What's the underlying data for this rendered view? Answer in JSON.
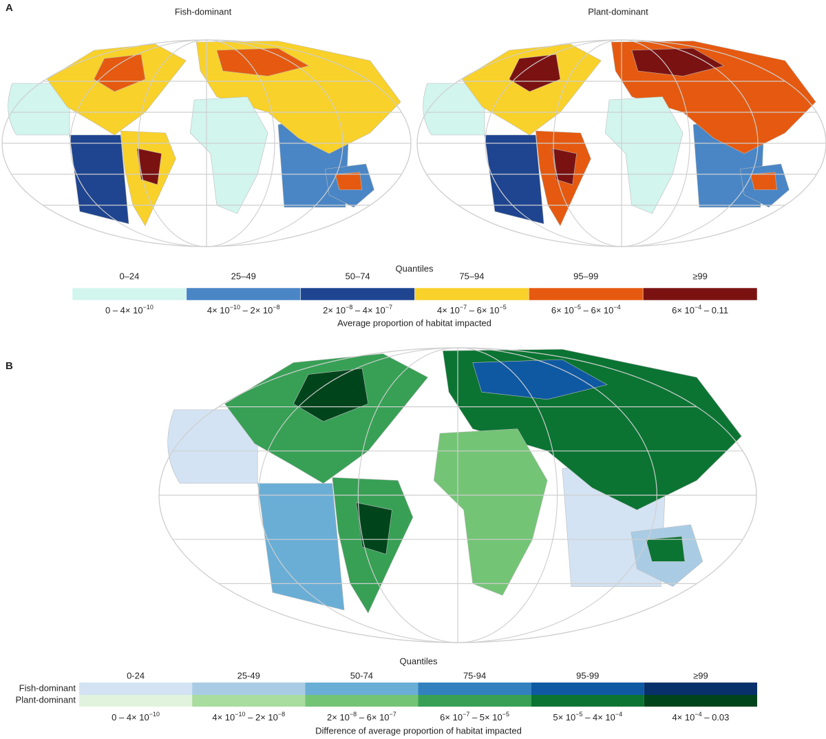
{
  "panel_a": {
    "label": "A",
    "titles": [
      "Fish-dominant",
      "Plant-dominant"
    ],
    "legend": {
      "title": "Quantiles",
      "quantiles": [
        "0–24",
        "25–49",
        "50–74",
        "75–94",
        "95–99",
        "≥99"
      ],
      "colors": [
        "#d2f5ee",
        "#4a86c5",
        "#1f4590",
        "#f8d12a",
        "#e55a10",
        "#7b1212"
      ],
      "ranges": [
        [
          "0 – 4× 10",
          "−10"
        ],
        [
          "4× 10",
          "−10",
          " – 2× 10",
          "−8"
        ],
        [
          "2× 10",
          "−8",
          " – 4× 10",
          "−7"
        ],
        [
          "4× 10",
          "−7",
          " – 6× 10",
          "−5"
        ],
        [
          "6× 10",
          "−5",
          " – 6× 10",
          "−4"
        ],
        [
          "6× 10",
          "−4",
          " – 0.11"
        ]
      ],
      "caption": "Average proportion of habitat impacted"
    }
  },
  "panel_b": {
    "label": "B",
    "legend": {
      "title": "Quantiles",
      "quantiles": [
        "0-24",
        "25-49",
        "50-74",
        "75-94",
        "95-99",
        "≥99"
      ],
      "rows": [
        "Fish-dominant",
        "Plant-dominant"
      ],
      "fish_colors": [
        "#d3e3f3",
        "#a9cce4",
        "#6aaed6",
        "#3280bd",
        "#0f59a3",
        "#08306b"
      ],
      "plant_colors": [
        "#e2f3dd",
        "#a9dc9f",
        "#74c476",
        "#37a055",
        "#0b7433",
        "#00441b"
      ],
      "ranges": [
        [
          "0 – 4× 10",
          "−10"
        ],
        [
          "4× 10",
          "−10",
          " – 2× 10",
          "−8"
        ],
        [
          "2× 10",
          "−8",
          " – 6× 10",
          "−7"
        ],
        [
          "6× 10",
          "−7",
          " – 5× 10",
          "−5"
        ],
        [
          "5× 10",
          "−5",
          " – 4× 10",
          "−4"
        ],
        [
          "4× 10",
          "−4",
          " – 0.03"
        ]
      ],
      "caption": "Difference of average proportion of habitat impacted"
    }
  }
}
